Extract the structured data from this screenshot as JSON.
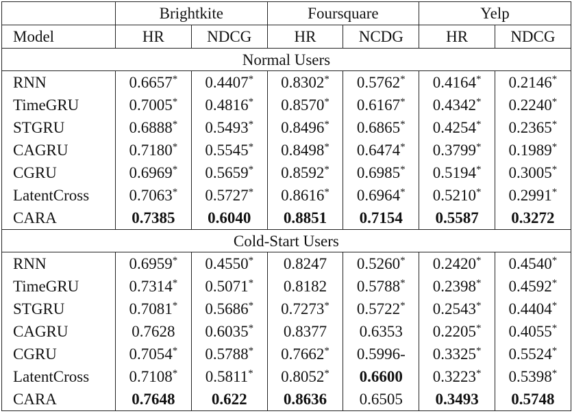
{
  "table": {
    "datasets": [
      "Brightkite",
      "Foursquare",
      "Yelp"
    ],
    "model_header": "Model",
    "metrics": [
      "HR",
      "NDCG",
      "HR",
      "NCDG",
      "HR",
      "NDCG"
    ],
    "sections": [
      {
        "title": "Normal Users",
        "rows": [
          {
            "model": "RNN",
            "cells": [
              {
                "v": "0.6657",
                "s": "*"
              },
              {
                "v": "0.4407",
                "s": "*"
              },
              {
                "v": "0.8302",
                "s": "*"
              },
              {
                "v": "0.5762",
                "s": "*"
              },
              {
                "v": "0.4164",
                "s": "*"
              },
              {
                "v": "0.2146",
                "s": "*"
              }
            ]
          },
          {
            "model": "TimeGRU",
            "cells": [
              {
                "v": "0.7005",
                "s": "*"
              },
              {
                "v": "0.4816",
                "s": "*"
              },
              {
                "v": "0.8570",
                "s": "*"
              },
              {
                "v": "0.6167",
                "s": "*"
              },
              {
                "v": "0.4342",
                "s": "*"
              },
              {
                "v": "0.2240",
                "s": "*"
              }
            ]
          },
          {
            "model": "STGRU",
            "cells": [
              {
                "v": "0.6888",
                "s": "*"
              },
              {
                "v": "0.5493",
                "s": "*"
              },
              {
                "v": "0.8496",
                "s": "*"
              },
              {
                "v": "0.6865",
                "s": "*"
              },
              {
                "v": "0.4254",
                "s": "*"
              },
              {
                "v": "0.2365",
                "s": "*"
              }
            ]
          },
          {
            "model": "CAGRU",
            "cells": [
              {
                "v": "0.7180",
                "s": "*"
              },
              {
                "v": "0.5545",
                "s": "*"
              },
              {
                "v": "0.8498",
                "s": "*"
              },
              {
                "v": "0.6474",
                "s": "*"
              },
              {
                "v": "0.3799",
                "s": "*"
              },
              {
                "v": "0.1989",
                "s": "*"
              }
            ]
          },
          {
            "model": "CGRU",
            "cells": [
              {
                "v": "0.6969",
                "s": "*"
              },
              {
                "v": "0.5659",
                "s": "*"
              },
              {
                "v": "0.8592",
                "s": "*"
              },
              {
                "v": "0.6985",
                "s": "*"
              },
              {
                "v": "0.5194",
                "s": "*"
              },
              {
                "v": "0.3005",
                "s": "*"
              }
            ]
          },
          {
            "model": "LatentCross",
            "cells": [
              {
                "v": "0.7063",
                "s": "*"
              },
              {
                "v": "0.5727",
                "s": "*"
              },
              {
                "v": "0.8616",
                "s": "*"
              },
              {
                "v": "0.6964",
                "s": "*"
              },
              {
                "v": "0.5210",
                "s": "*"
              },
              {
                "v": "0.2991",
                "s": "*"
              }
            ]
          },
          {
            "model": "CARA",
            "cells": [
              {
                "v": "0.7385",
                "b": true
              },
              {
                "v": "0.6040",
                "b": true
              },
              {
                "v": "0.8851",
                "b": true
              },
              {
                "v": "0.7154",
                "b": true
              },
              {
                "v": "0.5587",
                "b": true
              },
              {
                "v": "0.3272",
                "b": true
              }
            ]
          }
        ]
      },
      {
        "title": "Cold-Start Users",
        "rows": [
          {
            "model": "RNN",
            "cells": [
              {
                "v": "0.6959",
                "s": "*"
              },
              {
                "v": "0.4550",
                "s": "*"
              },
              {
                "v": "0.8247"
              },
              {
                "v": "0.5260",
                "s": "*"
              },
              {
                "v": "0.2420",
                "s": "*"
              },
              {
                "v": "0.4540",
                "s": "*"
              }
            ]
          },
          {
            "model": "TimeGRU",
            "cells": [
              {
                "v": "0.7314",
                "s": "*"
              },
              {
                "v": "0.5071",
                "s": "*"
              },
              {
                "v": "0.8182"
              },
              {
                "v": "0.5788",
                "s": "*"
              },
              {
                "v": "0.2398",
                "s": "*"
              },
              {
                "v": "0.4592",
                "s": "*"
              }
            ]
          },
          {
            "model": "STGRU",
            "cells": [
              {
                "v": "0.7081",
                "s": "*"
              },
              {
                "v": "0.5686",
                "s": "*"
              },
              {
                "v": "0.7273",
                "s": "*"
              },
              {
                "v": "0.5722",
                "s": "*"
              },
              {
                "v": "0.2543",
                "s": "*"
              },
              {
                "v": "0.4404",
                "s": "*"
              }
            ]
          },
          {
            "model": "CAGRU",
            "cells": [
              {
                "v": "0.7628"
              },
              {
                "v": "0.6035",
                "s": "*"
              },
              {
                "v": "0.8377"
              },
              {
                "v": "0.6353"
              },
              {
                "v": "0.2205",
                "s": "*"
              },
              {
                "v": "0.4055",
                "s": "*"
              }
            ]
          },
          {
            "model": "CGRU",
            "cells": [
              {
                "v": "0.7054",
                "s": "*"
              },
              {
                "v": "0.5788",
                "s": "*"
              },
              {
                "v": "0.7662",
                "s": "*"
              },
              {
                "v": "0.5996-"
              },
              {
                "v": "0.3325",
                "s": "*"
              },
              {
                "v": "0.5524",
                "s": "*"
              }
            ]
          },
          {
            "model": "LatentCross",
            "cells": [
              {
                "v": "0.7108",
                "s": "*"
              },
              {
                "v": "0.5811",
                "s": "*"
              },
              {
                "v": "0.8052",
                "s": "*"
              },
              {
                "v": "0.6600",
                "b": true
              },
              {
                "v": "0.3223",
                "s": "*"
              },
              {
                "v": "0.5398",
                "s": "*"
              }
            ]
          },
          {
            "model": "CARA",
            "cells": [
              {
                "v": "0.7648",
                "b": true
              },
              {
                "v": "0.622",
                "b": true
              },
              {
                "v": "0.8636",
                "b": true
              },
              {
                "v": "0.6505"
              },
              {
                "v": "0.3493",
                "b": true
              },
              {
                "v": "0.5748",
                "b": true
              }
            ]
          }
        ]
      }
    ]
  }
}
